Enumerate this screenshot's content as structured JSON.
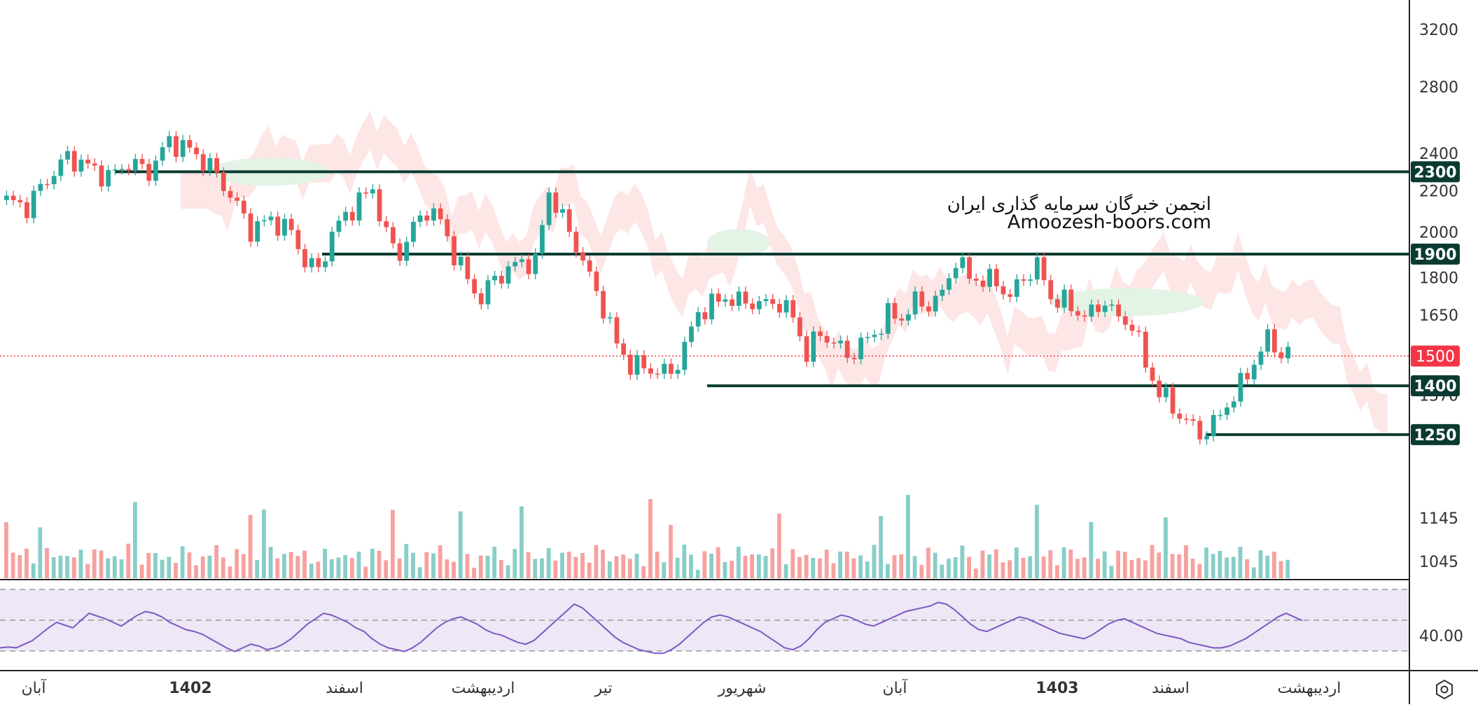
{
  "watermark": {
    "line1": "انجمن خبرگان سرمایه گذاری ایران",
    "line2": "Amoozesh-boors.com"
  },
  "colors": {
    "up": "#26a69a",
    "down": "#ef5350",
    "level_line": "#0b3b30",
    "level_tag_bg": "#0b3b30",
    "last_price_bg": "#f23645",
    "rsi_line": "#7e57c2",
    "rsi_band": "#ede7f6",
    "cloud_bear": "#fde3e3",
    "cloud_bull": "#e3f3e6"
  },
  "chart_data": {
    "type": "candlestick",
    "price_axis": {
      "scale": "log",
      "ticks": [
        3200,
        2800,
        2400,
        2200,
        2000,
        1800,
        1650,
        1370,
        1145,
        1045
      ]
    },
    "time_axis": {
      "labels": [
        "آبان",
        "1402",
        "اسفند",
        "اردیبهشت",
        "تیر",
        "شهریور",
        "آبان",
        "1403",
        "اسفند",
        "اردیبهشت"
      ],
      "bold_labels": [
        "1402",
        "1403"
      ]
    },
    "horizontal_levels": [
      {
        "label": "2300",
        "value": 2300
      },
      {
        "label": "1900",
        "value": 1900
      },
      {
        "label": "1400",
        "value": 1400
      },
      {
        "label": "1250",
        "value": 1250
      }
    ],
    "last_price": {
      "label": "1500",
      "value": 1500
    },
    "series": [
      {
        "path": [
          [
            0,
            2150
          ],
          [
            3,
            2120
          ],
          [
            6,
            2260
          ],
          [
            9,
            2380
          ],
          [
            12,
            2330
          ],
          [
            15,
            2270
          ],
          [
            18,
            2350
          ],
          [
            21,
            2300
          ],
          [
            24,
            2470
          ],
          [
            27,
            2420
          ],
          [
            30,
            2330
          ],
          [
            33,
            2180
          ],
          [
            36,
            2010
          ],
          [
            39,
            2060
          ],
          [
            42,
            2000
          ],
          [
            44,
            1870
          ],
          [
            46,
            1830
          ],
          [
            48,
            1990
          ],
          [
            50,
            2080
          ],
          [
            52,
            2150
          ],
          [
            54,
            2210
          ],
          [
            56,
            1980
          ],
          [
            58,
            1900
          ],
          [
            60,
            2020
          ],
          [
            62,
            2110
          ],
          [
            64,
            2050
          ],
          [
            66,
            1900
          ],
          [
            68,
            1790
          ],
          [
            70,
            1710
          ],
          [
            72,
            1800
          ],
          [
            74,
            1830
          ],
          [
            76,
            1870
          ],
          [
            78,
            1860
          ],
          [
            80,
            2200
          ],
          [
            82,
            2060
          ],
          [
            84,
            1940
          ],
          [
            86,
            1800
          ],
          [
            88,
            1680
          ],
          [
            90,
            1540
          ],
          [
            92,
            1470
          ],
          [
            94,
            1460
          ],
          [
            96,
            1450
          ],
          [
            98,
            1440
          ],
          [
            100,
            1530
          ],
          [
            102,
            1660
          ],
          [
            104,
            1690
          ],
          [
            106,
            1720
          ],
          [
            108,
            1700
          ],
          [
            110,
            1700
          ],
          [
            112,
            1690
          ],
          [
            114,
            1700
          ],
          [
            116,
            1640
          ],
          [
            118,
            1510
          ],
          [
            120,
            1580
          ],
          [
            122,
            1550
          ],
          [
            124,
            1500
          ],
          [
            126,
            1540
          ],
          [
            128,
            1580
          ],
          [
            130,
            1650
          ],
          [
            132,
            1640
          ],
          [
            134,
            1700
          ],
          [
            136,
            1690
          ],
          [
            138,
            1730
          ],
          [
            140,
            1880
          ],
          [
            142,
            1800
          ],
          [
            144,
            1790
          ],
          [
            146,
            1780
          ],
          [
            148,
            1720
          ],
          [
            150,
            1800
          ],
          [
            152,
            1850
          ],
          [
            154,
            1720
          ],
          [
            156,
            1700
          ],
          [
            158,
            1660
          ],
          [
            160,
            1650
          ],
          [
            162,
            1710
          ],
          [
            164,
            1630
          ],
          [
            166,
            1620
          ],
          [
            168,
            1470
          ],
          [
            170,
            1380
          ],
          [
            172,
            1330
          ],
          [
            174,
            1290
          ],
          [
            176,
            1250
          ],
          [
            178,
            1280
          ],
          [
            180,
            1340
          ],
          [
            182,
            1400
          ],
          [
            184,
            1480
          ],
          [
            186,
            1560
          ],
          [
            188,
            1510
          ]
        ]
      }
    ],
    "volume_axis_ticks": [
      1145,
      1045
    ],
    "indicator": {
      "name": "RSI",
      "ticks": [
        "40.00"
      ],
      "values": [
        30,
        31,
        30,
        34,
        38,
        45,
        52,
        58,
        55,
        52,
        60,
        68,
        65,
        62,
        58,
        54,
        60,
        66,
        70,
        68,
        64,
        58,
        54,
        50,
        48,
        45,
        40,
        35,
        30,
        26,
        30,
        34,
        32,
        28,
        30,
        34,
        40,
        48,
        56,
        62,
        68,
        66,
        62,
        58,
        52,
        48,
        40,
        34,
        30,
        28,
        26,
        30,
        36,
        44,
        52,
        58,
        62,
        64,
        60,
        56,
        50,
        46,
        44,
        40,
        36,
        34,
        38,
        46,
        54,
        62,
        70,
        78,
        74,
        66,
        58,
        50,
        42,
        36,
        32,
        28,
        26,
        24,
        24,
        28,
        34,
        42,
        50,
        58,
        64,
        66,
        64,
        60,
        56,
        52,
        48,
        42,
        36,
        30,
        28,
        32,
        40,
        50,
        58,
        62,
        66,
        64,
        60,
        56,
        54,
        58,
        62,
        66,
        70,
        72,
        74,
        76,
        80,
        78,
        72,
        64,
        56,
        50,
        48,
        52,
        56,
        60,
        64,
        62,
        58,
        54,
        50,
        46,
        44,
        42,
        40,
        44,
        50,
        56,
        60,
        62,
        58,
        54,
        50,
        46,
        44,
        42,
        40,
        36,
        34,
        32,
        30,
        30,
        32,
        36,
        40,
        46,
        52,
        58,
        64,
        68,
        64,
        60
      ]
    }
  }
}
